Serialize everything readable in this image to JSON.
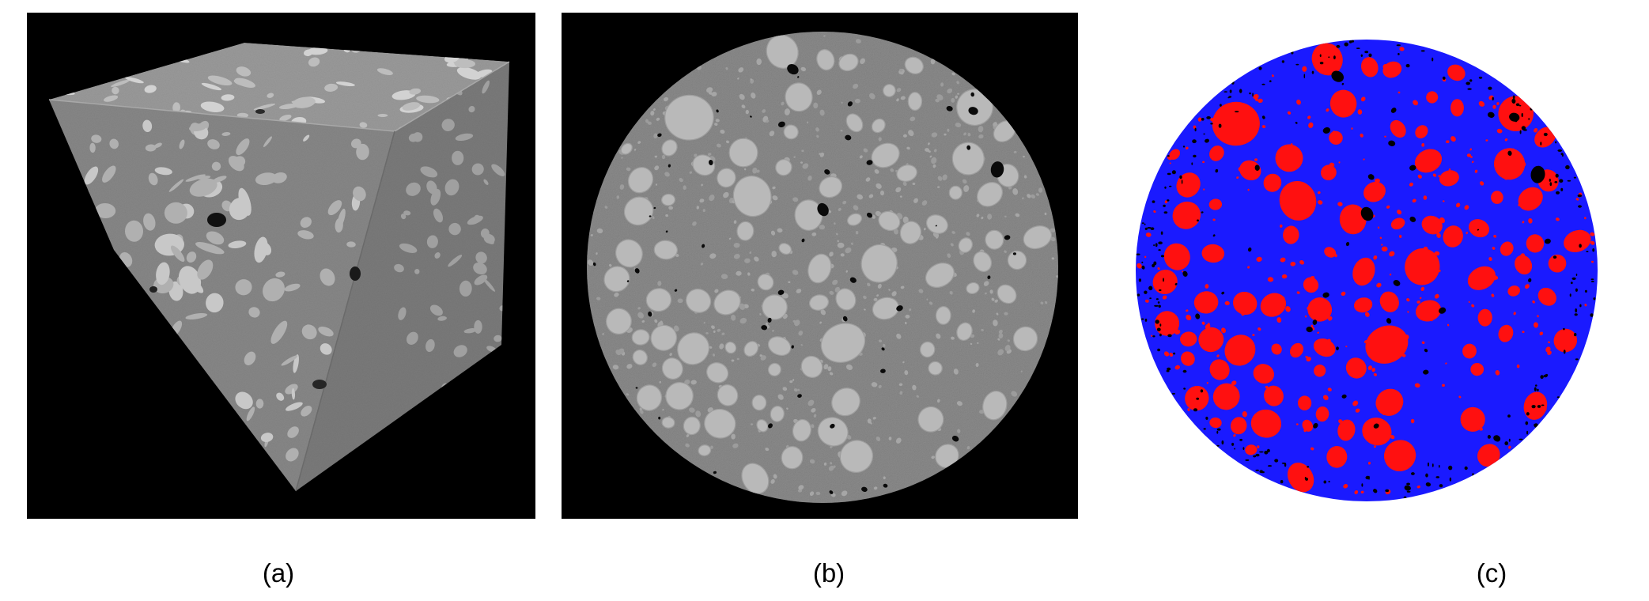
{
  "figure": {
    "panels": [
      {
        "id": "a",
        "label": "(a)",
        "content": "3d-ct-volume-cube"
      },
      {
        "id": "b",
        "label": "(b)",
        "content": "ct-cross-section-slice"
      },
      {
        "id": "c",
        "label": "(c)",
        "content": "segmented-cross-section"
      }
    ],
    "colors": {
      "background": "#000000",
      "matrix_gray": "#8a8a8a",
      "aggregate_gray": "#b9b9b9",
      "pore_black": "#0a0a0a",
      "seg_matrix_blue": "#1a1aff",
      "seg_aggregate_red": "#ff1010",
      "seg_pore_black": "#000000"
    }
  }
}
